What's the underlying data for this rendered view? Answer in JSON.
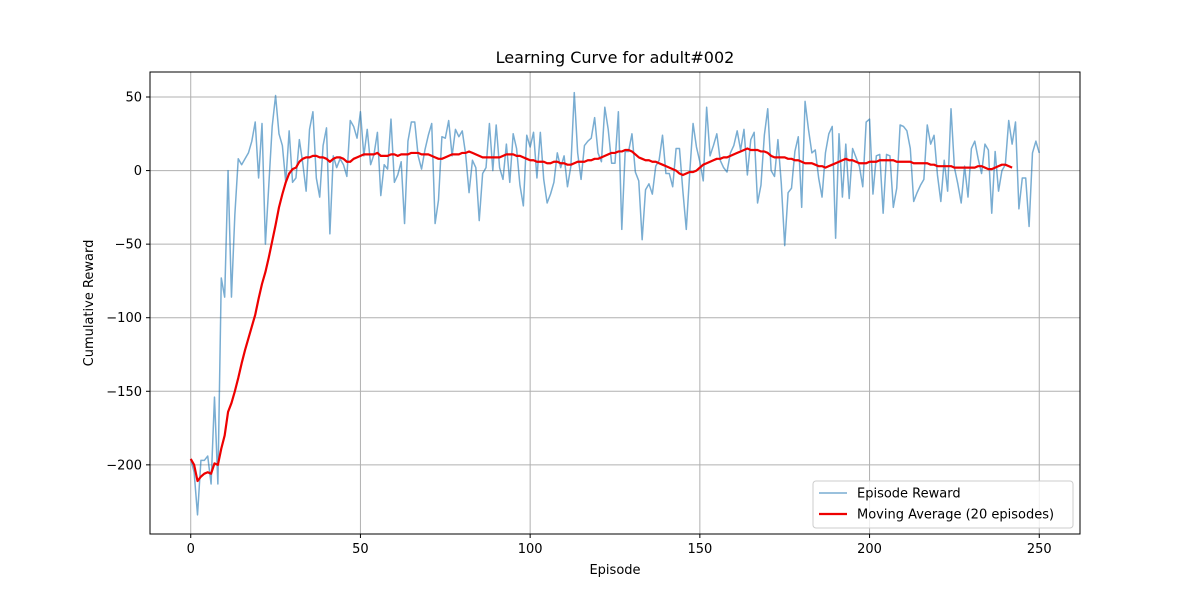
{
  "chart_data": {
    "type": "line",
    "title": "Learning Curve for adult#002",
    "xlabel": "Episode",
    "ylabel": "Cumulative Reward",
    "xlim": [
      -12,
      262
    ],
    "ylim": [
      -247,
      67
    ],
    "xticks": [
      0,
      50,
      100,
      150,
      200,
      250
    ],
    "yticks": [
      -200,
      -150,
      -100,
      -50,
      0,
      50
    ],
    "grid": true,
    "legend_position": "lower-right",
    "series": [
      {
        "name": "Episode Reward",
        "color": "#1f77b4",
        "opacity": 0.6,
        "values": [
          -196,
          -205,
          -234,
          -197,
          -197,
          -194,
          -213,
          -154,
          -213,
          -73,
          -86,
          0,
          -86,
          -30,
          8,
          4,
          8,
          12,
          20,
          33,
          -5,
          32,
          -50,
          -10,
          30,
          51,
          25,
          17,
          -8,
          27,
          -8,
          -5,
          21,
          5,
          -14,
          28,
          40,
          -5,
          -18,
          17,
          29,
          -43,
          10,
          2,
          8,
          4,
          -4,
          34,
          30,
          22,
          40,
          10,
          28,
          4,
          11,
          26,
          -17,
          4,
          1,
          35,
          -8,
          -3,
          6,
          -36,
          20,
          33,
          33,
          10,
          1,
          14,
          24,
          32,
          -36,
          -20,
          23,
          22,
          34,
          10,
          28,
          23,
          27,
          11,
          -15,
          7,
          2,
          -34,
          -2,
          2,
          32,
          0,
          31,
          2,
          -6,
          18,
          -8,
          25,
          15,
          -10,
          -24,
          24,
          16,
          26,
          -5,
          26,
          -6,
          -22,
          -16,
          -8,
          12,
          2,
          10,
          -11,
          3,
          53,
          12,
          -6,
          17,
          20,
          22,
          36,
          12,
          6,
          43,
          28,
          5,
          5,
          40,
          -40,
          13,
          13,
          25,
          -1,
          -7,
          -47,
          -13,
          -9,
          -16,
          3,
          7,
          24,
          -2,
          -2,
          -11,
          15,
          15,
          -14,
          -40,
          -2,
          32,
          16,
          6,
          -7,
          43,
          10,
          17,
          25,
          7,
          2,
          -1,
          12,
          17,
          27,
          14,
          28,
          -3,
          21,
          26,
          -22,
          -10,
          24,
          42,
          0,
          -4,
          21,
          -9,
          -51,
          -15,
          -12,
          13,
          23,
          -25,
          47,
          28,
          12,
          14,
          -5,
          -18,
          12,
          25,
          30,
          -46,
          25,
          -18,
          18,
          -19,
          15,
          9,
          3,
          -11,
          33,
          35,
          -16,
          10,
          11,
          -29,
          11,
          10,
          -25,
          -12,
          31,
          30,
          27,
          15,
          -21,
          -15,
          -10,
          -6,
          31,
          18,
          24,
          -3,
          -21,
          7,
          -14,
          42,
          2,
          -9,
          -22,
          3,
          -18,
          15,
          20,
          8,
          -2,
          18,
          14,
          -29,
          13,
          -14,
          0,
          4,
          34,
          18,
          33,
          -26,
          -5,
          -5,
          -38,
          12,
          20,
          12
        ]
      },
      {
        "name": "Moving Average (20 episodes)",
        "color": "#ee0000",
        "values": [
          -196,
          -200,
          -211,
          -208,
          -206,
          -205,
          -206,
          -199,
          -200,
          -189,
          -180,
          -164,
          -158,
          -150,
          -141,
          -131,
          -122,
          -114,
          -106,
          -98,
          -87,
          -77,
          -69,
          -59,
          -48,
          -37,
          -25,
          -16,
          -8,
          -2,
          1,
          2,
          6,
          8,
          9,
          9,
          10,
          10,
          9,
          9,
          8,
          6,
          8,
          9,
          9,
          8,
          6,
          6,
          8,
          9,
          10,
          11,
          11,
          11,
          11,
          12,
          10,
          10,
          10,
          11,
          11,
          10,
          11,
          11,
          11,
          12,
          12,
          12,
          11,
          11,
          11,
          10,
          9,
          8,
          8,
          9,
          10,
          11,
          11,
          11,
          12,
          12,
          13,
          12,
          11,
          10,
          9,
          9,
          9,
          9,
          9,
          9,
          10,
          11,
          11,
          11,
          10,
          10,
          9,
          8,
          7,
          7,
          6,
          6,
          6,
          5,
          5,
          6,
          6,
          5,
          5,
          4,
          4,
          5,
          6,
          6,
          6,
          7,
          7,
          8,
          8,
          9,
          10,
          11,
          12,
          12,
          13,
          13,
          14,
          14,
          13,
          11,
          9,
          8,
          7,
          7,
          6,
          6,
          5,
          4,
          3,
          2,
          1,
          0,
          -2,
          -3,
          -2,
          -1,
          -1,
          0,
          2,
          4,
          5,
          6,
          7,
          8,
          8,
          9,
          9,
          10,
          11,
          12,
          13,
          14,
          15,
          14,
          14,
          14,
          13,
          13,
          12,
          10,
          9,
          9,
          9,
          9,
          8,
          8,
          7,
          7,
          6,
          5,
          5,
          5,
          4,
          3,
          3,
          2,
          3,
          4,
          5,
          6,
          7,
          8,
          7,
          7,
          6,
          5,
          5,
          5,
          6,
          6,
          6,
          7,
          7,
          7,
          7,
          7,
          6,
          6,
          6,
          6,
          6,
          5,
          5,
          5,
          5,
          5,
          4,
          4,
          3,
          3,
          3,
          3,
          3,
          2,
          2,
          2,
          2,
          2,
          2,
          2,
          3,
          3,
          2,
          1,
          1,
          2,
          3,
          4,
          4,
          3,
          2
        ]
      }
    ]
  }
}
